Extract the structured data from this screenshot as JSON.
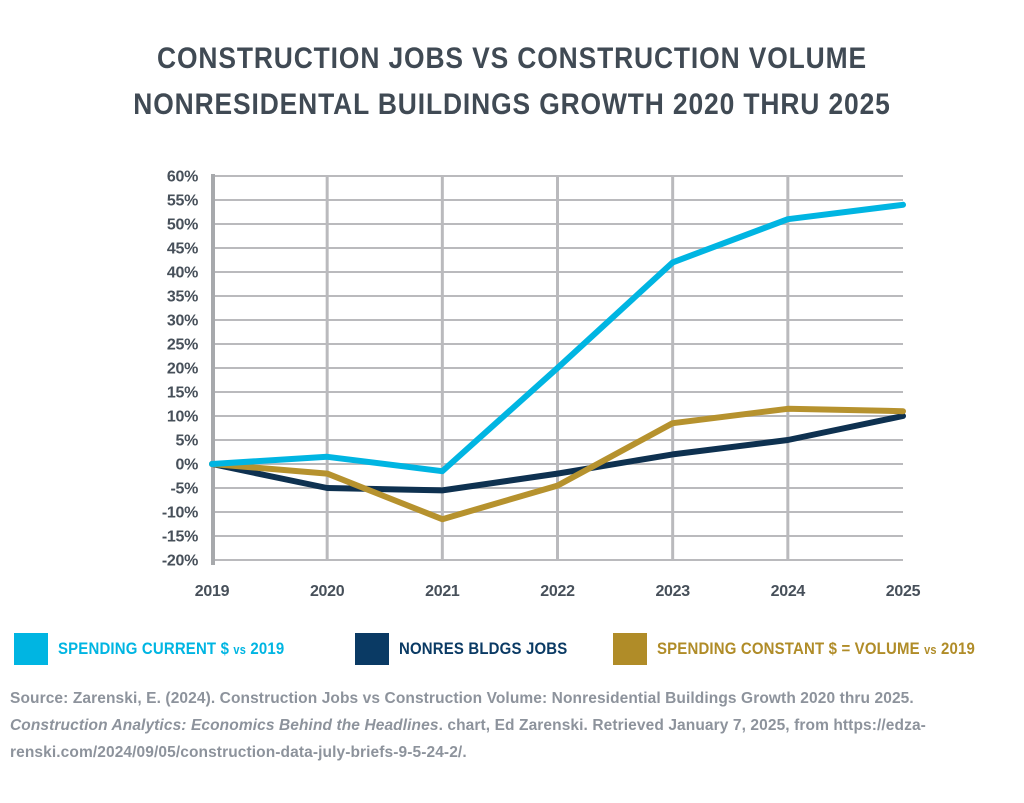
{
  "title": {
    "line1": "CONSTRUCTION JOBS VS CONSTRUCTION VOLUME",
    "line2": "NONRESIDENTAL BUILDINGS GROWTH 2020 THRU 2025"
  },
  "chart_data": {
    "type": "line",
    "title": "Construction Jobs vs Construction Volume — Nonresidental Buildings Growth 2020 thru 2025",
    "x": [
      "2019",
      "2020",
      "2021",
      "2022",
      "2023",
      "2024",
      "2025"
    ],
    "series": [
      {
        "id": "spending-current-dollars",
        "name": "SPENDING CURRENT $ vs 2019",
        "color": "#00b5e2",
        "values": [
          0,
          1.5,
          -1.5,
          20,
          42,
          51,
          54
        ]
      },
      {
        "id": "nonres-bldgs-jobs",
        "name": "NONRES BLDGS JOBS",
        "color": "#0e3150",
        "values": [
          0,
          -5,
          -5.5,
          -2,
          2,
          5,
          10
        ]
      },
      {
        "id": "spending-constant-volume",
        "name": "SPENDING CONSTANT $ = VOLUME vs 2019",
        "color": "#b6922e",
        "values": [
          0,
          -2,
          -11.5,
          -4.5,
          8.5,
          11.5,
          11
        ]
      }
    ],
    "xlabel": "",
    "ylabel": "",
    "ylim": [
      -20,
      60
    ],
    "ytick_step": 5,
    "ytick_suffix": "%",
    "grid": true,
    "legend_position": "bottom"
  },
  "legend": {
    "items": [
      {
        "main": "SPENDING CURRENT $",
        "vs": "vs",
        "year": "2019",
        "color": "#00b5e2"
      },
      {
        "main": "NONRES BLDGS JOBS",
        "vs": "",
        "year": "",
        "color": "#0a3a64"
      },
      {
        "main": "SPENDING CONSTANT $ = VOLUME",
        "vs": "vs",
        "year": "2019",
        "color": "#b08c28"
      }
    ]
  },
  "source": {
    "line1": "Source: Zarenski, E. (2024). Construction Jobs vs Construction Volume: Nonresidential Buildings Growth 2020 thru 2025.",
    "italic": "Construction Analytics: Economics Behind the Headlines",
    "after_italic": ". chart, Ed Zarenski. Retrieved January 7, 2025, from https://edza-",
    "line3": "renski.com/2024/09/05/construction-data-july-briefs-9-5-24-2/."
  },
  "colors": {
    "background": "#ffffff",
    "title_text": "#404a54",
    "tick_text": "#47505a",
    "grid": "#bababd",
    "axis": "#a7a9ac",
    "source_text": "#8d939c"
  }
}
